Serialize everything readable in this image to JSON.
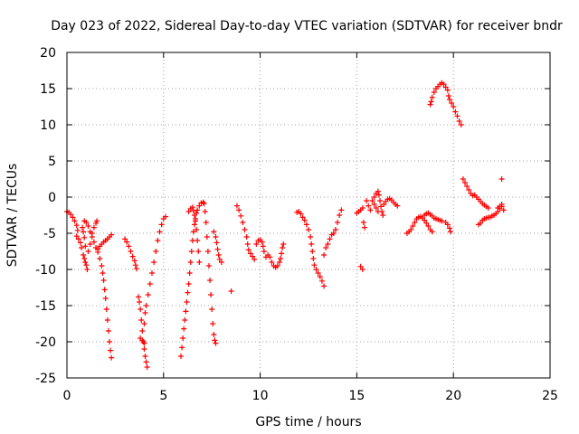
{
  "chart_data": {
    "type": "scatter",
    "title": "Day 023 of 2022, Sidereal Day-to-day VTEC variation (SDTVAR) for receiver bndr",
    "xlabel": "GPS time / hours",
    "ylabel": "SDTVAR / TECUs",
    "xlim": [
      0,
      25
    ],
    "ylim": [
      -25,
      20
    ],
    "xticks": [
      "0",
      "5",
      "10",
      "15",
      "20",
      "25"
    ],
    "yticks": [
      "-25",
      "-20",
      "-15",
      "-10",
      "-5",
      "0",
      "5",
      "10",
      "15",
      "20"
    ],
    "grid": true,
    "marker": "+",
    "color": "#ff0000",
    "series": [
      {
        "name": "SDTVAR",
        "points": [
          [
            0.0,
            -2.0
          ],
          [
            0.1,
            -2.1
          ],
          [
            0.2,
            -2.4
          ],
          [
            0.3,
            -2.8
          ],
          [
            0.4,
            -3.3
          ],
          [
            0.5,
            -3.9
          ],
          [
            0.55,
            -4.6
          ],
          [
            0.5,
            -5.4
          ],
          [
            0.6,
            -5.8
          ],
          [
            0.7,
            -6.3
          ],
          [
            0.75,
            -7.0
          ],
          [
            0.8,
            -4.2
          ],
          [
            0.85,
            -4.8
          ],
          [
            0.9,
            -5.6
          ],
          [
            0.95,
            -6.8
          ],
          [
            0.85,
            -8.0
          ],
          [
            0.9,
            -8.5
          ],
          [
            0.95,
            -9.0
          ],
          [
            1.0,
            -9.4
          ],
          [
            1.05,
            -10.0
          ],
          [
            0.9,
            -3.3
          ],
          [
            1.0,
            -3.5
          ],
          [
            1.1,
            -4.0
          ],
          [
            1.2,
            -4.8
          ],
          [
            1.3,
            -5.5
          ],
          [
            1.4,
            -6.2
          ],
          [
            1.5,
            -7.0
          ],
          [
            1.6,
            -7.6
          ],
          [
            1.7,
            -8.5
          ],
          [
            1.8,
            -9.5
          ],
          [
            1.85,
            -10.5
          ],
          [
            1.9,
            -11.5
          ],
          [
            1.95,
            -12.8
          ],
          [
            2.0,
            -14.0
          ],
          [
            2.05,
            -15.5
          ],
          [
            2.1,
            -17.0
          ],
          [
            2.15,
            -18.5
          ],
          [
            2.2,
            -20.0
          ],
          [
            2.25,
            -21.2
          ],
          [
            2.3,
            -22.2
          ],
          [
            1.1,
            -7.5
          ],
          [
            1.2,
            -6.5
          ],
          [
            1.3,
            -5.0
          ],
          [
            1.4,
            -4.2
          ],
          [
            1.5,
            -3.6
          ],
          [
            1.55,
            -3.3
          ],
          [
            1.6,
            -7.2
          ],
          [
            1.7,
            -6.8
          ],
          [
            1.8,
            -6.5
          ],
          [
            1.9,
            -6.2
          ],
          [
            2.0,
            -6.0
          ],
          [
            2.1,
            -5.8
          ],
          [
            2.2,
            -5.5
          ],
          [
            2.3,
            -5.2
          ],
          [
            3.0,
            -5.8
          ],
          [
            3.1,
            -6.2
          ],
          [
            3.2,
            -6.8
          ],
          [
            3.3,
            -7.5
          ],
          [
            3.4,
            -8.2
          ],
          [
            3.5,
            -8.8
          ],
          [
            3.55,
            -9.4
          ],
          [
            3.6,
            -9.9
          ],
          [
            3.7,
            -13.8
          ],
          [
            3.75,
            -14.5
          ],
          [
            3.8,
            -15.5
          ],
          [
            3.85,
            -17.0
          ],
          [
            3.9,
            -18.5
          ],
          [
            3.95,
            -20.0
          ],
          [
            4.0,
            -21.0
          ],
          [
            4.05,
            -22.0
          ],
          [
            4.1,
            -22.8
          ],
          [
            4.15,
            -23.5
          ],
          [
            3.8,
            -19.5
          ],
          [
            3.9,
            -19.8
          ],
          [
            4.0,
            -20.2
          ],
          [
            4.0,
            -17.5
          ],
          [
            4.05,
            -16.0
          ],
          [
            4.1,
            -15.0
          ],
          [
            4.2,
            -13.5
          ],
          [
            4.3,
            -12.0
          ],
          [
            4.4,
            -10.5
          ],
          [
            4.5,
            -9.0
          ],
          [
            4.6,
            -7.5
          ],
          [
            4.7,
            -6.0
          ],
          [
            4.8,
            -4.8
          ],
          [
            4.9,
            -3.8
          ],
          [
            5.0,
            -3.0
          ],
          [
            5.1,
            -2.7
          ],
          [
            5.9,
            -22.0
          ],
          [
            5.95,
            -20.8
          ],
          [
            6.0,
            -19.5
          ],
          [
            6.05,
            -18.2
          ],
          [
            6.1,
            -17.0
          ],
          [
            6.15,
            -15.8
          ],
          [
            6.2,
            -14.5
          ],
          [
            6.25,
            -13.2
          ],
          [
            6.3,
            -12.0
          ],
          [
            6.35,
            -10.5
          ],
          [
            6.4,
            -9.0
          ],
          [
            6.45,
            -7.5
          ],
          [
            6.5,
            -6.0
          ],
          [
            6.55,
            -4.8
          ],
          [
            6.6,
            -3.8
          ],
          [
            6.65,
            -3.0
          ],
          [
            6.7,
            -2.2
          ],
          [
            6.75,
            -1.8
          ],
          [
            6.3,
            -2.0
          ],
          [
            6.4,
            -1.6
          ],
          [
            6.5,
            -1.4
          ],
          [
            6.55,
            -1.9
          ],
          [
            6.6,
            -2.5
          ],
          [
            6.65,
            -3.3
          ],
          [
            6.7,
            -4.5
          ],
          [
            6.75,
            -6.0
          ],
          [
            6.8,
            -7.5
          ],
          [
            6.85,
            -9.0
          ],
          [
            6.85,
            -1.2
          ],
          [
            6.95,
            -0.8
          ],
          [
            7.05,
            -0.7
          ],
          [
            7.1,
            -0.9
          ],
          [
            7.15,
            -2.0
          ],
          [
            7.2,
            -3.5
          ],
          [
            7.25,
            -5.5
          ],
          [
            7.3,
            -7.5
          ],
          [
            7.35,
            -9.5
          ],
          [
            7.4,
            -11.5
          ],
          [
            7.45,
            -13.5
          ],
          [
            7.5,
            -15.5
          ],
          [
            7.55,
            -17.5
          ],
          [
            7.6,
            -19.0
          ],
          [
            7.65,
            -19.8
          ],
          [
            7.7,
            -20.2
          ],
          [
            7.6,
            -4.8
          ],
          [
            7.7,
            -5.5
          ],
          [
            7.75,
            -6.3
          ],
          [
            7.8,
            -7.2
          ],
          [
            7.85,
            -8.0
          ],
          [
            7.9,
            -8.6
          ],
          [
            8.0,
            -9.0
          ],
          [
            8.5,
            -13.0
          ],
          [
            8.8,
            -1.2
          ],
          [
            8.9,
            -1.8
          ],
          [
            9.0,
            -2.6
          ],
          [
            9.1,
            -3.5
          ],
          [
            9.2,
            -4.5
          ],
          [
            9.3,
            -5.5
          ],
          [
            9.35,
            -6.5
          ],
          [
            9.4,
            -7.3
          ],
          [
            9.5,
            -7.8
          ],
          [
            9.6,
            -8.2
          ],
          [
            9.7,
            -8.6
          ],
          [
            9.8,
            -6.5
          ],
          [
            9.9,
            -6.0
          ],
          [
            10.0,
            -5.9
          ],
          [
            10.1,
            -6.2
          ],
          [
            10.15,
            -6.8
          ],
          [
            10.2,
            -7.5
          ],
          [
            10.3,
            -8.3
          ],
          [
            10.4,
            -8.0
          ],
          [
            10.5,
            -8.3
          ],
          [
            10.6,
            -9.0
          ],
          [
            10.7,
            -9.5
          ],
          [
            10.8,
            -9.7
          ],
          [
            10.9,
            -9.5
          ],
          [
            11.0,
            -9.0
          ],
          [
            11.05,
            -8.5
          ],
          [
            11.1,
            -7.8
          ],
          [
            11.15,
            -7.0
          ],
          [
            11.2,
            -6.5
          ],
          [
            11.9,
            -2.1
          ],
          [
            12.0,
            -2.0
          ],
          [
            12.1,
            -2.3
          ],
          [
            12.2,
            -2.8
          ],
          [
            12.3,
            -3.2
          ],
          [
            12.4,
            -3.8
          ],
          [
            12.5,
            -4.5
          ],
          [
            12.6,
            -5.5
          ],
          [
            12.65,
            -6.5
          ],
          [
            12.7,
            -7.5
          ],
          [
            12.75,
            -8.5
          ],
          [
            12.8,
            -9.4
          ],
          [
            12.9,
            -10.0
          ],
          [
            13.0,
            -10.5
          ],
          [
            13.1,
            -11.0
          ],
          [
            13.2,
            -11.6
          ],
          [
            13.3,
            -12.3
          ],
          [
            13.3,
            -8.0
          ],
          [
            13.4,
            -7.0
          ],
          [
            13.5,
            -6.5
          ],
          [
            13.6,
            -5.8
          ],
          [
            13.7,
            -5.2
          ],
          [
            13.8,
            -5.0
          ],
          [
            13.9,
            -4.5
          ],
          [
            14.0,
            -3.5
          ],
          [
            14.1,
            -2.5
          ],
          [
            14.2,
            -1.8
          ],
          [
            15.2,
            -9.6
          ],
          [
            15.3,
            -10.0
          ],
          [
            15.0,
            -2.2
          ],
          [
            15.1,
            -2.0
          ],
          [
            15.2,
            -1.8
          ],
          [
            15.3,
            -1.5
          ],
          [
            15.35,
            -3.5
          ],
          [
            15.4,
            -4.2
          ],
          [
            15.5,
            -0.5
          ],
          [
            15.6,
            -1.2
          ],
          [
            15.7,
            -1.8
          ],
          [
            15.8,
            -0.5
          ],
          [
            15.9,
            0.0
          ],
          [
            16.0,
            0.5
          ],
          [
            16.1,
            0.8
          ],
          [
            16.15,
            0.3
          ],
          [
            16.2,
            -0.5
          ],
          [
            16.25,
            -1.3
          ],
          [
            16.3,
            -2.0
          ],
          [
            16.35,
            -2.5
          ],
          [
            15.9,
            -1.0
          ],
          [
            16.0,
            -1.5
          ],
          [
            16.1,
            -2.0
          ],
          [
            16.4,
            -1.0
          ],
          [
            16.5,
            -0.6
          ],
          [
            16.6,
            -0.3
          ],
          [
            16.7,
            -0.2
          ],
          [
            16.8,
            -0.4
          ],
          [
            16.9,
            -0.7
          ],
          [
            17.0,
            -1.0
          ],
          [
            17.1,
            -1.2
          ],
          [
            17.6,
            -5.0
          ],
          [
            17.7,
            -4.8
          ],
          [
            17.8,
            -4.5
          ],
          [
            17.9,
            -4.0
          ],
          [
            18.0,
            -3.5
          ],
          [
            18.1,
            -3.0
          ],
          [
            18.2,
            -2.8
          ],
          [
            18.3,
            -2.7
          ],
          [
            18.4,
            -2.9
          ],
          [
            18.5,
            -3.2
          ],
          [
            18.6,
            -3.6
          ],
          [
            18.7,
            -4.0
          ],
          [
            18.8,
            -4.5
          ],
          [
            18.9,
            -4.8
          ],
          [
            18.5,
            -2.5
          ],
          [
            18.6,
            -2.3
          ],
          [
            18.7,
            -2.2
          ],
          [
            18.8,
            -2.4
          ],
          [
            18.9,
            -2.6
          ],
          [
            19.0,
            -2.9
          ],
          [
            19.1,
            -3.0
          ],
          [
            19.2,
            -3.1
          ],
          [
            19.3,
            -3.2
          ],
          [
            19.4,
            -3.3
          ],
          [
            19.6,
            -3.5
          ],
          [
            19.7,
            -3.8
          ],
          [
            19.8,
            -4.3
          ],
          [
            19.85,
            -4.8
          ],
          [
            18.8,
            12.8
          ],
          [
            18.85,
            13.2
          ],
          [
            18.9,
            13.8
          ],
          [
            19.0,
            14.5
          ],
          [
            19.1,
            15.0
          ],
          [
            19.2,
            15.3
          ],
          [
            19.3,
            15.6
          ],
          [
            19.4,
            15.8
          ],
          [
            19.5,
            15.6
          ],
          [
            19.6,
            15.2
          ],
          [
            19.7,
            14.8
          ],
          [
            19.75,
            14.0
          ],
          [
            19.8,
            13.5
          ],
          [
            19.9,
            13.0
          ],
          [
            20.0,
            12.5
          ],
          [
            20.1,
            11.8
          ],
          [
            20.2,
            11.2
          ],
          [
            20.3,
            10.5
          ],
          [
            20.4,
            10.0
          ],
          [
            20.5,
            2.5
          ],
          [
            20.6,
            2.0
          ],
          [
            20.7,
            1.5
          ],
          [
            20.8,
            1.0
          ],
          [
            20.9,
            0.5
          ],
          [
            21.0,
            0.2
          ],
          [
            21.1,
            0.3
          ],
          [
            21.2,
            0.0
          ],
          [
            21.3,
            -0.3
          ],
          [
            21.4,
            -0.6
          ],
          [
            21.5,
            -0.9
          ],
          [
            21.6,
            -1.1
          ],
          [
            21.7,
            -1.3
          ],
          [
            21.8,
            -1.5
          ],
          [
            21.3,
            -3.8
          ],
          [
            21.4,
            -3.6
          ],
          [
            21.5,
            -3.2
          ],
          [
            21.6,
            -3.0
          ],
          [
            21.7,
            -2.9
          ],
          [
            21.8,
            -2.8
          ],
          [
            21.9,
            -2.8
          ],
          [
            22.0,
            -2.6
          ],
          [
            22.1,
            -2.5
          ],
          [
            22.2,
            -2.3
          ],
          [
            22.3,
            -2.0
          ],
          [
            22.4,
            -1.6
          ],
          [
            22.5,
            -1.3
          ],
          [
            22.6,
            -1.8
          ],
          [
            22.5,
            -1.0
          ],
          [
            22.4,
            -1.3
          ],
          [
            22.3,
            -1.5
          ],
          [
            22.5,
            2.5
          ]
        ]
      }
    ]
  }
}
